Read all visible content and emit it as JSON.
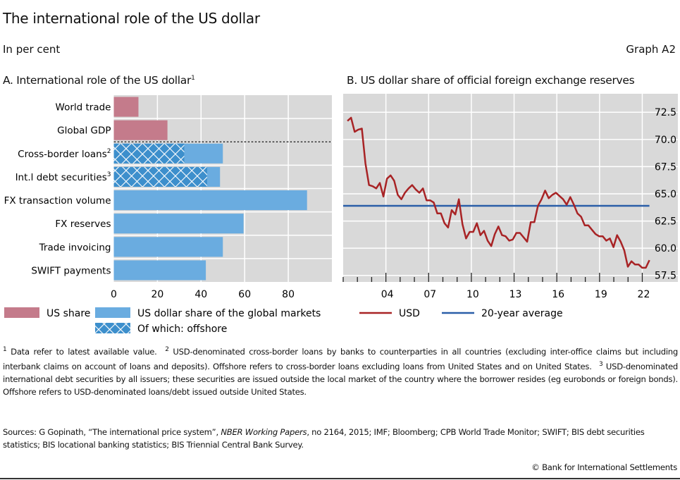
{
  "header": {
    "title": "The international role of the US dollar",
    "unit": "In per cent",
    "graph_id": "Graph A2"
  },
  "colors": {
    "us_share": "#c47b8b",
    "usd_global": "#6aace0",
    "offshore": "#3d8fcc",
    "usd_line": "#a82325",
    "avg_line": "#2a5ea8",
    "plot_bg": "#d9d9d9"
  },
  "chart_data": [
    {
      "type": "bar",
      "orientation": "horizontal",
      "title": "A. International role of the US dollar",
      "title_sup": "1",
      "categories": [
        "World trade",
        "Global GDP",
        "Cross-border loans",
        "Int.l debt securities",
        "FX transaction volume",
        "FX reserves",
        "Trade invoicing",
        "SWIFT payments"
      ],
      "category_sups": [
        "",
        "",
        "2",
        "3",
        "",
        "",
        "",
        ""
      ],
      "series": [
        {
          "name": "US share",
          "values": [
            11.3,
            24.6,
            null,
            null,
            null,
            null,
            null,
            null
          ]
        },
        {
          "name": "US dollar share of the global markets",
          "values": [
            null,
            null,
            50.0,
            48.7,
            88.6,
            59.5,
            50.0,
            42.2
          ]
        },
        {
          "name": "Of which: offshore",
          "values": [
            null,
            null,
            32.3,
            42.8,
            null,
            null,
            null,
            null
          ]
        }
      ],
      "xlim": [
        0,
        100
      ],
      "xticks": [
        0,
        20,
        40,
        60,
        80
      ],
      "grid": true,
      "legend_position": "bottom"
    },
    {
      "type": "line",
      "title": "B. US dollar share of official foreign exchange reserves",
      "x_start": 2001.3,
      "x_end": 2022.5,
      "xlim": [
        2001,
        2024.5
      ],
      "xticks": [
        2004,
        2007,
        2010,
        2013,
        2016,
        2019,
        2022
      ],
      "xtick_labels": [
        "04",
        "07",
        "10",
        "13",
        "16",
        "19",
        "22"
      ],
      "ylim": [
        56.9,
        74.2
      ],
      "yticks": [
        57.5,
        60.0,
        62.5,
        65.0,
        67.5,
        70.0,
        72.5
      ],
      "ytick_labels": [
        "57.5",
        "60.0",
        "62.5",
        "65.0",
        "67.5",
        "70.0",
        "72.5"
      ],
      "y_axis_side": "right",
      "series": [
        {
          "name": "USD",
          "values": [
            71.7,
            72.0,
            70.7,
            70.9,
            71.0,
            67.8,
            65.8,
            65.7,
            65.5,
            66.0,
            64.75,
            66.4,
            66.7,
            66.2,
            64.9,
            64.5,
            65.1,
            65.5,
            65.8,
            65.4,
            65.1,
            65.5,
            64.4,
            64.4,
            64.2,
            63.2,
            63.2,
            62.3,
            61.9,
            63.5,
            63.1,
            64.5,
            62.2,
            60.9,
            61.5,
            61.5,
            62.3,
            61.2,
            61.6,
            60.7,
            60.2,
            61.3,
            62.0,
            61.2,
            61.1,
            60.7,
            60.8,
            61.4,
            61.4,
            61.0,
            60.6,
            62.4,
            62.4,
            63.9,
            64.5,
            65.3,
            64.6,
            64.9,
            65.1,
            64.8,
            64.5,
            64.0,
            64.7,
            64.0,
            63.2,
            62.9,
            62.1,
            62.1,
            61.7,
            61.3,
            61.1,
            61.1,
            60.7,
            60.9,
            60.1,
            61.2,
            60.6,
            59.8,
            58.3,
            58.8,
            58.5,
            58.5,
            58.2,
            58.2,
            58.9
          ]
        },
        {
          "name": "20-year average",
          "constant": 63.9
        }
      ],
      "grid": true,
      "legend_position": "bottom"
    }
  ],
  "legend": {
    "us_share": "US share",
    "usd_global": "US dollar share of the global markets",
    "offshore": "Of which: offshore",
    "usd": "USD",
    "avg": "20-year average"
  },
  "footnotes": [
    {
      "num": "1",
      "text": "Data refer to latest available value."
    },
    {
      "num": "2",
      "text": "USD-denominated cross-border loans by banks to counterparties in all countries (excluding inter-office claims but including interbank claims on account of loans and deposits). Offshore refers to cross-border loans excluding loans from United States and on United States."
    },
    {
      "num": "3",
      "text": "USD-denominated international debt securities by all issuers; these securities are issued outside the local market of the country where the borrower resides (eg eurobonds or foreign bonds). Offshore refers to USD-denominated loans/debt issued outside United States."
    }
  ],
  "sources": {
    "prefix": "Sources: G Gopinath, “The international price system”, ",
    "italic": "NBER Working Papers",
    "suffix": ", no 2164, 2015; IMF; Bloomberg; CPB World Trade Monitor; SWIFT; BIS debt securities statistics; BIS locational banking statistics; BIS Triennial Central Bank Survey."
  },
  "copyright": "© Bank for International Settlements"
}
